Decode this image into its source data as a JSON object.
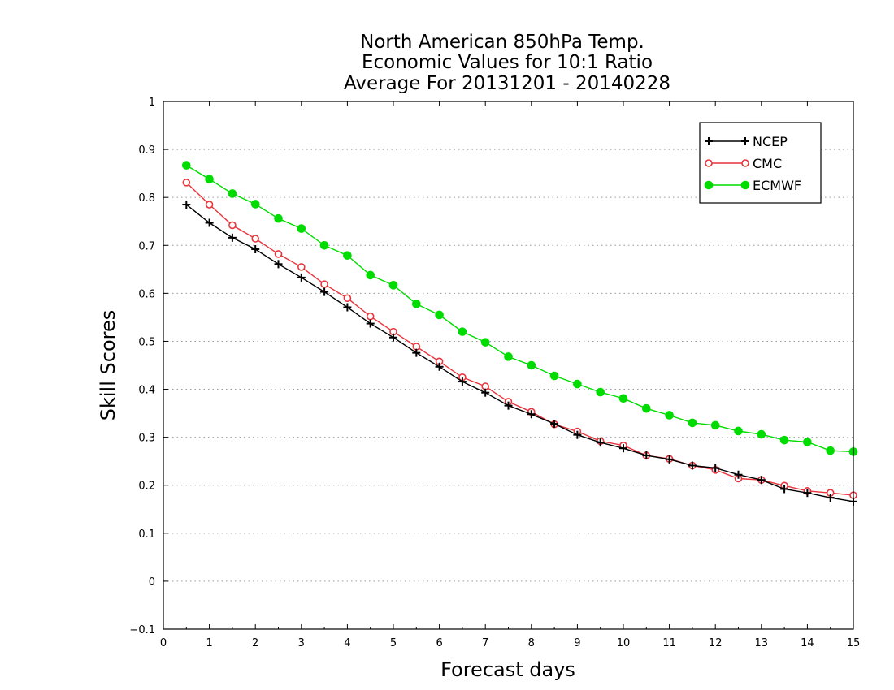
{
  "chart_data": {
    "type": "line",
    "title": [
      "North American 850hPa Temp.",
      "Economic Values for 10:1 Ratio",
      "Average For 20131201 - 20140228"
    ],
    "xlabel": "Forecast days",
    "ylabel": "Skill Scores",
    "xlim": [
      0,
      15
    ],
    "ylim": [
      -0.1,
      1
    ],
    "xticks": [
      "0",
      "1",
      "2",
      "3",
      "4",
      "5",
      "6",
      "7",
      "8",
      "9",
      "10",
      "11",
      "12",
      "13",
      "14",
      "15"
    ],
    "yticks": [
      "−0.1",
      "0",
      "0.1",
      "0.2",
      "0.3",
      "0.4",
      "0.5",
      "0.6",
      "0.7",
      "0.8",
      "0.9",
      "1"
    ],
    "grid": true,
    "legend_position": "top-right",
    "x": [
      0.5,
      1,
      1.5,
      2,
      2.5,
      3,
      3.5,
      4,
      4.5,
      5,
      5.5,
      6,
      6.5,
      7,
      7.5,
      8,
      8.5,
      9,
      9.5,
      10,
      10.5,
      11,
      11.5,
      12,
      12.5,
      13,
      13.5,
      14,
      14.5,
      15
    ],
    "series": [
      {
        "name": "NCEP",
        "color": "#000000",
        "marker": "plus",
        "values": [
          0.785,
          0.747,
          0.716,
          0.692,
          0.661,
          0.633,
          0.603,
          0.571,
          0.537,
          0.508,
          0.476,
          0.447,
          0.416,
          0.393,
          0.366,
          0.348,
          0.328,
          0.305,
          0.289,
          0.277,
          0.262,
          0.254,
          0.241,
          0.236,
          0.222,
          0.211,
          0.192,
          0.184,
          0.174,
          0.166
        ]
      },
      {
        "name": "CMC",
        "color": "#e8343c",
        "marker": "open-circle",
        "values": [
          0.831,
          0.785,
          0.742,
          0.714,
          0.682,
          0.655,
          0.619,
          0.59,
          0.552,
          0.52,
          0.489,
          0.458,
          0.425,
          0.406,
          0.374,
          0.353,
          0.327,
          0.312,
          0.292,
          0.283,
          0.262,
          0.255,
          0.241,
          0.232,
          0.214,
          0.211,
          0.199,
          0.188,
          0.184,
          0.179
        ]
      },
      {
        "name": "ECMWF",
        "color": "#00dc00",
        "marker": "filled-circle",
        "values": [
          0.867,
          0.838,
          0.808,
          0.786,
          0.756,
          0.735,
          0.7,
          0.679,
          0.638,
          0.617,
          0.578,
          0.555,
          0.52,
          0.498,
          0.468,
          0.45,
          0.428,
          0.411,
          0.394,
          0.381,
          0.36,
          0.346,
          0.33,
          0.325,
          0.313,
          0.306,
          0.294,
          0.29,
          0.272,
          0.27
        ]
      }
    ]
  }
}
